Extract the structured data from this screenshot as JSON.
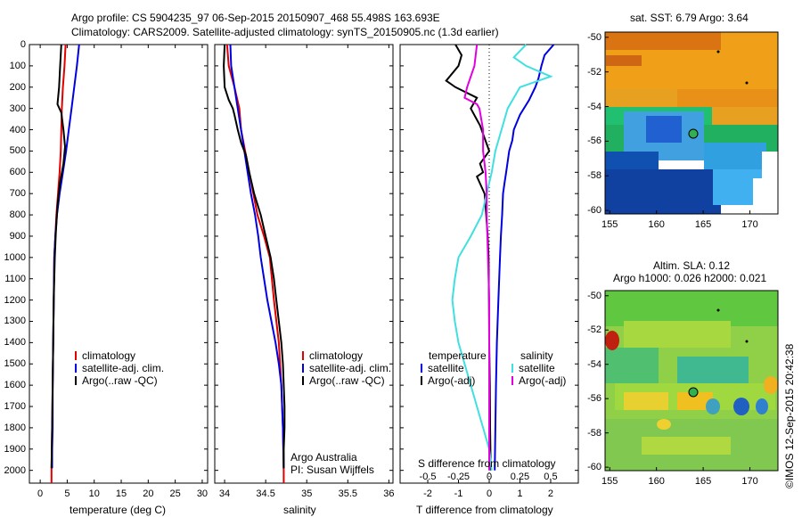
{
  "title_line1": "Argo profile: CS 5904235_97 06-Sep-2015 20150907_468 55.498S 163.693E",
  "title_line2": "Climatology: CARS2009. Satellite-adjusted climatology: synTS_20150905.nc (1.3d earlier)",
  "depth_ticks": [
    "0",
    "100",
    "200",
    "300",
    "400",
    "500",
    "600",
    "700",
    "800",
    "900",
    "1000",
    "1100",
    "1200",
    "1300",
    "1400",
    "1500",
    "1600",
    "1700",
    "1800",
    "1900",
    "2000"
  ],
  "colors": {
    "climatology": "#e00000",
    "satellite": "#0000e0",
    "argo": "#000000",
    "sal_satellite": "#40e0e0",
    "sal_argo": "#e000e0"
  },
  "panel_temp": {
    "xlabel": "temperature (deg C)",
    "xticks": [
      "0",
      "5",
      "10",
      "15",
      "20",
      "25",
      "30"
    ],
    "legend": [
      "climatology",
      "satellite-adj. clim.",
      "Argo(..raw -QC)"
    ]
  },
  "panel_sal": {
    "xlabel": "salinity",
    "xticks": [
      "34",
      "34.5",
      "35",
      "35.5",
      "36"
    ],
    "legend": [
      "climatology",
      "satellite-adj. clim.",
      "Argo(..raw -QC)"
    ],
    "note1": "Argo Australia",
    "note2": "PI: Susan Wijffels"
  },
  "panel_diff": {
    "xlabel": "T difference from climatology",
    "top_label": "S difference from climatology",
    "s_ticks": [
      "-0.5",
      "-0.25",
      "0",
      "0.25",
      "0.5"
    ],
    "t_ticks": [
      "-2",
      "-1",
      "0",
      "1",
      "2"
    ],
    "legend_left_title": "temperature",
    "legend_left": [
      "satellite",
      "Argo(-adj)"
    ],
    "legend_right_title": "salinity",
    "legend_right": [
      "satellite",
      "Argo(-adj)"
    ]
  },
  "map_sst": {
    "title": "sat. SST: 6.79  Argo: 3.64",
    "lat_ticks": [
      "-50",
      "-52",
      "-54",
      "-56",
      "-58",
      "-60"
    ],
    "lon_ticks": [
      "155",
      "160",
      "165",
      "170"
    ]
  },
  "map_sla": {
    "title1": "Altim. SLA: 0.12",
    "title2": "Argo h1000: 0.026 h2000: 0.021",
    "lat_ticks": [
      "-50",
      "-52",
      "-54",
      "-56",
      "-58",
      "-60"
    ],
    "lon_ticks": [
      "155",
      "160",
      "165",
      "170"
    ]
  },
  "footer_stamp": "©IMOS 12-Sep-2015 20:42:38",
  "chart_data": [
    {
      "type": "line",
      "xlabel": "temperature (deg C)",
      "ylabel": "",
      "xlim": [
        -2,
        31
      ],
      "ylim": [
        2060,
        0
      ],
      "series": [
        {
          "name": "climatology",
          "points": [
            [
              4.7,
              0
            ],
            [
              4.5,
              100
            ],
            [
              4.2,
              200
            ],
            [
              4.0,
              300
            ],
            [
              3.9,
              400
            ],
            [
              3.8,
              500
            ],
            [
              3.6,
              600
            ],
            [
              3.3,
              700
            ],
            [
              3.0,
              800
            ],
            [
              2.8,
              900
            ],
            [
              2.6,
              1000
            ],
            [
              2.5,
              1200
            ],
            [
              2.4,
              1400
            ],
            [
              2.3,
              1600
            ],
            [
              2.2,
              1800
            ],
            [
              2.1,
              2000
            ],
            [
              2.1,
              2060
            ]
          ]
        },
        {
          "name": "satellite-adj. clim.",
          "points": [
            [
              7.2,
              0
            ],
            [
              6.8,
              100
            ],
            [
              6.3,
              200
            ],
            [
              5.8,
              300
            ],
            [
              5.3,
              400
            ],
            [
              4.8,
              500
            ],
            [
              4.2,
              600
            ],
            [
              3.6,
              700
            ],
            [
              3.1,
              800
            ],
            [
              2.8,
              900
            ],
            [
              2.6,
              1000
            ],
            [
              2.5,
              1200
            ],
            [
              2.4,
              1400
            ],
            [
              2.3,
              1600
            ],
            [
              2.3,
              1800
            ],
            [
              2.2,
              1900
            ],
            [
              2.2,
              1990
            ]
          ]
        },
        {
          "name": "Argo(..raw -QC)",
          "points": [
            [
              3.9,
              0
            ],
            [
              3.7,
              100
            ],
            [
              3.5,
              200
            ],
            [
              3.2,
              280
            ],
            [
              3.9,
              320
            ],
            [
              4.3,
              400
            ],
            [
              4.6,
              480
            ],
            [
              4.3,
              560
            ],
            [
              3.6,
              660
            ],
            [
              3.2,
              760
            ],
            [
              2.9,
              880
            ],
            [
              2.7,
              1000
            ],
            [
              2.5,
              1200
            ],
            [
              2.4,
              1400
            ],
            [
              2.3,
              1600
            ],
            [
              2.2,
              1800
            ],
            [
              2.1,
              1990
            ]
          ]
        }
      ]
    },
    {
      "type": "line",
      "xlabel": "salinity",
      "ylabel": "",
      "xlim": [
        33.88,
        36.05
      ],
      "ylim": [
        2060,
        0
      ],
      "series": [
        {
          "name": "climatology",
          "points": [
            [
              34.03,
              0
            ],
            [
              34.05,
              100
            ],
            [
              34.12,
              200
            ],
            [
              34.18,
              300
            ],
            [
              34.2,
              400
            ],
            [
              34.25,
              500
            ],
            [
              34.3,
              600
            ],
            [
              34.35,
              700
            ],
            [
              34.4,
              800
            ],
            [
              34.48,
              900
            ],
            [
              34.55,
              1000
            ],
            [
              34.6,
              1200
            ],
            [
              34.66,
              1400
            ],
            [
              34.69,
              1600
            ],
            [
              34.71,
              1800
            ],
            [
              34.72,
              2000
            ],
            [
              34.72,
              2060
            ]
          ]
        },
        {
          "name": "satellite-adj. clim.",
          "points": [
            [
              34.07,
              0
            ],
            [
              34.08,
              100
            ],
            [
              34.12,
              200
            ],
            [
              34.16,
              300
            ],
            [
              34.2,
              400
            ],
            [
              34.24,
              500
            ],
            [
              34.28,
              600
            ],
            [
              34.32,
              700
            ],
            [
              34.37,
              800
            ],
            [
              34.41,
              900
            ],
            [
              34.44,
              1000
            ],
            [
              34.48,
              1100
            ],
            [
              34.52,
              1200
            ],
            [
              34.57,
              1300
            ],
            [
              34.62,
              1400
            ],
            [
              34.66,
              1500
            ],
            [
              34.69,
              1600
            ],
            [
              34.71,
              1800
            ],
            [
              34.72,
              1990
            ]
          ]
        },
        {
          "name": "Argo(..raw -QC)",
          "points": [
            [
              34.0,
              0
            ],
            [
              33.99,
              100
            ],
            [
              34.0,
              200
            ],
            [
              34.05,
              260
            ],
            [
              34.1,
              300
            ],
            [
              34.12,
              330
            ],
            [
              34.16,
              400
            ],
            [
              34.2,
              460
            ],
            [
              34.26,
              520
            ],
            [
              34.3,
              600
            ],
            [
              34.36,
              700
            ],
            [
              34.44,
              800
            ],
            [
              34.5,
              900
            ],
            [
              34.56,
              1000
            ],
            [
              34.6,
              1100
            ],
            [
              34.63,
              1200
            ],
            [
              34.66,
              1300
            ],
            [
              34.69,
              1400
            ],
            [
              34.71,
              1500
            ],
            [
              34.72,
              1600
            ],
            [
              34.73,
              1700
            ],
            [
              34.73,
              1800
            ],
            [
              34.72,
              1900
            ],
            [
              34.72,
              1990
            ]
          ]
        }
      ]
    },
    {
      "type": "line",
      "xlabel": "T difference from climatology",
      "ylabel": "",
      "top_axis_label": "S difference from climatology",
      "xlim": [
        -2.9,
        2.9
      ],
      "ylim": [
        2060,
        0
      ],
      "series": [
        {
          "name": "temperature satellite",
          "points": [
            [
              2.1,
              0
            ],
            [
              1.8,
              50
            ],
            [
              1.7,
              100
            ],
            [
              1.6,
              160
            ],
            [
              1.5,
              200
            ],
            [
              1.3,
              260
            ],
            [
              1.0,
              330
            ],
            [
              0.8,
              400
            ],
            [
              0.75,
              450
            ],
            [
              0.65,
              500
            ],
            [
              0.6,
              550
            ],
            [
              0.55,
              600
            ],
            [
              0.5,
              650
            ],
            [
              0.45,
              700
            ],
            [
              0.42,
              800
            ],
            [
              0.38,
              900
            ],
            [
              0.35,
              1000
            ],
            [
              0.3,
              1200
            ],
            [
              0.25,
              1400
            ],
            [
              0.22,
              1600
            ],
            [
              0.2,
              1800
            ],
            [
              0.18,
              2000
            ]
          ]
        },
        {
          "name": "temperature Argo(-adj)",
          "points": [
            [
              -1.1,
              0
            ],
            [
              -0.9,
              50
            ],
            [
              -1.0,
              100
            ],
            [
              -1.4,
              170
            ],
            [
              -1.1,
              200
            ],
            [
              -0.4,
              250
            ],
            [
              -0.6,
              300
            ],
            [
              -0.3,
              380
            ],
            [
              0.0,
              500
            ],
            [
              -0.3,
              560
            ],
            [
              -0.2,
              600
            ],
            [
              -0.4,
              620
            ],
            [
              -0.15,
              700
            ],
            [
              -0.1,
              800
            ],
            [
              -0.05,
              900
            ],
            [
              -0.02,
              1000
            ],
            [
              -0.01,
              1200
            ],
            [
              0.0,
              1400
            ],
            [
              0.02,
              1600
            ],
            [
              0.03,
              1800
            ],
            [
              0.05,
              2000
            ]
          ]
        },
        {
          "name": "salinity satellite",
          "points": [
            [
              0.3,
              0
            ],
            [
              0.2,
              60
            ],
            [
              0.3,
              100
            ],
            [
              0.5,
              150
            ],
            [
              0.25,
              200
            ],
            [
              0.15,
              300
            ],
            [
              0.1,
              400
            ],
            [
              0.05,
              500
            ],
            [
              0.02,
              600
            ],
            [
              -0.02,
              700
            ],
            [
              -0.06,
              800
            ],
            [
              -0.15,
              900
            ],
            [
              -0.25,
              1000
            ],
            [
              -0.28,
              1100
            ],
            [
              -0.3,
              1200
            ],
            [
              -0.28,
              1300
            ],
            [
              -0.25,
              1400
            ],
            [
              -0.2,
              1500
            ],
            [
              -0.15,
              1600
            ],
            [
              -0.1,
              1700
            ],
            [
              -0.05,
              1800
            ],
            [
              0.0,
              1900
            ],
            [
              0.02,
              2000
            ]
          ]
        },
        {
          "name": "salinity Argo(-adj)",
          "points": [
            [
              -0.1,
              0
            ],
            [
              -0.12,
              100
            ],
            [
              -0.18,
              200
            ],
            [
              -0.2,
              250
            ],
            [
              -0.1,
              280
            ],
            [
              -0.08,
              300
            ],
            [
              -0.05,
              400
            ],
            [
              -0.05,
              500
            ],
            [
              -0.03,
              600
            ],
            [
              -0.02,
              700
            ],
            [
              -0.02,
              800
            ],
            [
              -0.01,
              1000
            ],
            [
              0.0,
              1200
            ],
            [
              0.0,
              1400
            ],
            [
              0.0,
              1600
            ],
            [
              0.0,
              1800
            ],
            [
              0.0,
              2000
            ]
          ]
        }
      ]
    },
    {
      "type": "heatmap",
      "title": "sat. SST: 6.79  Argo: 3.64",
      "xlim": [
        154.5,
        173
      ],
      "ylim": [
        -60.2,
        -49.7
      ],
      "argo_position": [
        163.7,
        -55.5
      ]
    },
    {
      "type": "heatmap",
      "title": "Altim. SLA: 0.12",
      "subtitle": "Argo h1000: 0.026 h2000: 0.021",
      "xlim": [
        154.5,
        173
      ],
      "ylim": [
        -60.2,
        -49.7
      ],
      "argo_position": [
        163.7,
        -55.5
      ]
    }
  ]
}
